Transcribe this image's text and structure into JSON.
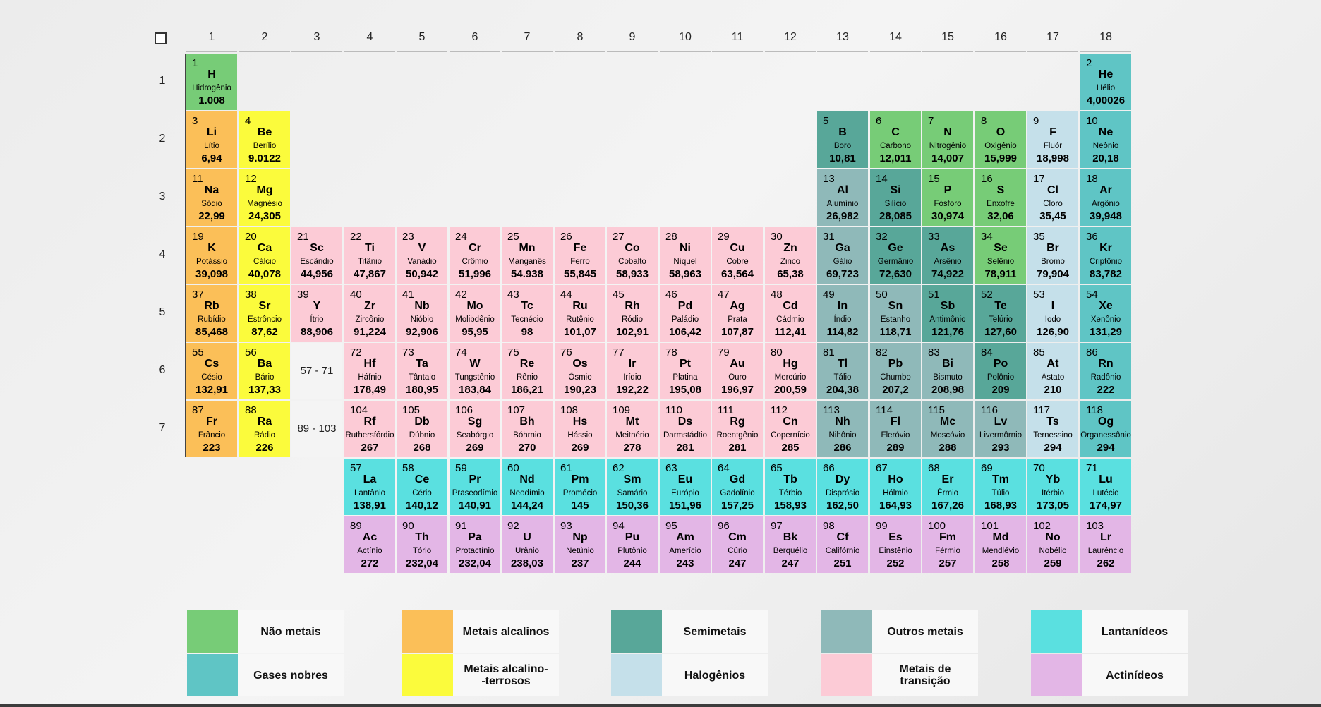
{
  "table": {
    "columns": [
      "1",
      "2",
      "3",
      "4",
      "5",
      "6",
      "7",
      "8",
      "9",
      "10",
      "11",
      "12",
      "13",
      "14",
      "15",
      "16",
      "17",
      "18"
    ],
    "rows": [
      "1",
      "2",
      "3",
      "4",
      "5",
      "6",
      "7"
    ],
    "ranges": [
      {
        "col": 3,
        "row": 6,
        "label": "57 - 71"
      },
      {
        "col": 3,
        "row": 7,
        "label": "89 - 103"
      }
    ]
  },
  "colors": {
    "nonmetal": "#77cc77",
    "noble": "#5fc5c5",
    "alkali": "#fbbf58",
    "alkaline": "#fbfb3c",
    "metalloid": "#58a799",
    "halogen": "#c5e0ea",
    "othermetal": "#8fb9b9",
    "transition": "#fccbd6",
    "lanthanide": "#5ae0e0",
    "actinide": "#e3b6e6"
  },
  "elements": [
    {
      "n": "1",
      "s": "H",
      "name": "Hidrogênio",
      "m": "1.008",
      "c": "nonmetal",
      "col": 1,
      "row": 1
    },
    {
      "n": "2",
      "s": "He",
      "name": "Hélio",
      "m": "4,00026",
      "c": "noble",
      "col": 18,
      "row": 1
    },
    {
      "n": "3",
      "s": "Li",
      "name": "Lítio",
      "m": "6,94",
      "c": "alkali",
      "col": 1,
      "row": 2
    },
    {
      "n": "4",
      "s": "Be",
      "name": "Berílio",
      "m": "9.0122",
      "c": "alkaline",
      "col": 2,
      "row": 2
    },
    {
      "n": "5",
      "s": "B",
      "name": "Boro",
      "m": "10,81",
      "c": "metalloid",
      "col": 13,
      "row": 2
    },
    {
      "n": "6",
      "s": "C",
      "name": "Carbono",
      "m": "12,011",
      "c": "nonmetal",
      "col": 14,
      "row": 2
    },
    {
      "n": "7",
      "s": "N",
      "name": "Nitrogênio",
      "m": "14,007",
      "c": "nonmetal",
      "col": 15,
      "row": 2
    },
    {
      "n": "8",
      "s": "O",
      "name": "Oxigênio",
      "m": "15,999",
      "c": "nonmetal",
      "col": 16,
      "row": 2
    },
    {
      "n": "9",
      "s": "F",
      "name": "Fluór",
      "m": "18,998",
      "c": "halogen",
      "col": 17,
      "row": 2
    },
    {
      "n": "10",
      "s": "Ne",
      "name": "Neônio",
      "m": "20,18",
      "c": "noble",
      "col": 18,
      "row": 2
    },
    {
      "n": "11",
      "s": "Na",
      "name": "Sódio",
      "m": "22,99",
      "c": "alkali",
      "col": 1,
      "row": 3
    },
    {
      "n": "12",
      "s": "Mg",
      "name": "Magnésio",
      "m": "24,305",
      "c": "alkaline",
      "col": 2,
      "row": 3
    },
    {
      "n": "13",
      "s": "Al",
      "name": "Alumínio",
      "m": "26,982",
      "c": "othermetal",
      "col": 13,
      "row": 3
    },
    {
      "n": "14",
      "s": "Si",
      "name": "Silício",
      "m": "28,085",
      "c": "metalloid",
      "col": 14,
      "row": 3
    },
    {
      "n": "15",
      "s": "P",
      "name": "Fósforo",
      "m": "30,974",
      "c": "nonmetal",
      "col": 15,
      "row": 3
    },
    {
      "n": "16",
      "s": "S",
      "name": "Enxofre",
      "m": "32,06",
      "c": "nonmetal",
      "col": 16,
      "row": 3
    },
    {
      "n": "17",
      "s": "Cl",
      "name": "Cloro",
      "m": "35,45",
      "c": "halogen",
      "col": 17,
      "row": 3
    },
    {
      "n": "18",
      "s": "Ar",
      "name": "Argônio",
      "m": "39,948",
      "c": "noble",
      "col": 18,
      "row": 3
    },
    {
      "n": "19",
      "s": "K",
      "name": "Potássio",
      "m": "39,098",
      "c": "alkali",
      "col": 1,
      "row": 4
    },
    {
      "n": "20",
      "s": "Ca",
      "name": "Cálcio",
      "m": "40,078",
      "c": "alkaline",
      "col": 2,
      "row": 4
    },
    {
      "n": "21",
      "s": "Sc",
      "name": "Escândio",
      "m": "44,956",
      "c": "transition",
      "col": 3,
      "row": 4
    },
    {
      "n": "22",
      "s": "Ti",
      "name": "Titânio",
      "m": "47,867",
      "c": "transition",
      "col": 4,
      "row": 4
    },
    {
      "n": "23",
      "s": "V",
      "name": "Vanádio",
      "m": "50,942",
      "c": "transition",
      "col": 5,
      "row": 4
    },
    {
      "n": "24",
      "s": "Cr",
      "name": "Crômio",
      "m": "51,996",
      "c": "transition",
      "col": 6,
      "row": 4
    },
    {
      "n": "25",
      "s": "Mn",
      "name": "Manganês",
      "m": "54.938",
      "c": "transition",
      "col": 7,
      "row": 4
    },
    {
      "n": "26",
      "s": "Fe",
      "name": "Ferro",
      "m": "55,845",
      "c": "transition",
      "col": 8,
      "row": 4
    },
    {
      "n": "27",
      "s": "Co",
      "name": "Cobalto",
      "m": "58,933",
      "c": "transition",
      "col": 9,
      "row": 4
    },
    {
      "n": "28",
      "s": "Ni",
      "name": "Níquel",
      "m": "58,963",
      "c": "transition",
      "col": 10,
      "row": 4
    },
    {
      "n": "29",
      "s": "Cu",
      "name": "Cobre",
      "m": "63,564",
      "c": "transition",
      "col": 11,
      "row": 4
    },
    {
      "n": "30",
      "s": "Zn",
      "name": "Zinco",
      "m": "65,38",
      "c": "transition",
      "col": 12,
      "row": 4
    },
    {
      "n": "31",
      "s": "Ga",
      "name": "Gálio",
      "m": "69,723",
      "c": "othermetal",
      "col": 13,
      "row": 4
    },
    {
      "n": "32",
      "s": "Ge",
      "name": "Germânio",
      "m": "72,630",
      "c": "metalloid",
      "col": 14,
      "row": 4
    },
    {
      "n": "33",
      "s": "As",
      "name": "Arsênio",
      "m": "74,922",
      "c": "metalloid",
      "col": 15,
      "row": 4
    },
    {
      "n": "34",
      "s": "Se",
      "name": "Selênio",
      "m": "78,911",
      "c": "nonmetal",
      "col": 16,
      "row": 4
    },
    {
      "n": "35",
      "s": "Br",
      "name": "Bromo",
      "m": "79,904",
      "c": "halogen",
      "col": 17,
      "row": 4
    },
    {
      "n": "36",
      "s": "Kr",
      "name": "Criptônio",
      "m": "83,782",
      "c": "noble",
      "col": 18,
      "row": 4
    },
    {
      "n": "37",
      "s": "Rb",
      "name": "Rubídio",
      "m": "85,468",
      "c": "alkali",
      "col": 1,
      "row": 5
    },
    {
      "n": "38",
      "s": "Sr",
      "name": "Estrôncio",
      "m": "87,62",
      "c": "alkaline",
      "col": 2,
      "row": 5
    },
    {
      "n": "39",
      "s": "Y",
      "name": "Ítrio",
      "m": "88,906",
      "c": "transition",
      "col": 3,
      "row": 5
    },
    {
      "n": "40",
      "s": "Zr",
      "name": "Zircônio",
      "m": "91,224",
      "c": "transition",
      "col": 4,
      "row": 5
    },
    {
      "n": "41",
      "s": "Nb",
      "name": "Nióbio",
      "m": "92,906",
      "c": "transition",
      "col": 5,
      "row": 5
    },
    {
      "n": "42",
      "s": "Mo",
      "name": "Molibdênio",
      "m": "95,95",
      "c": "transition",
      "col": 6,
      "row": 5
    },
    {
      "n": "43",
      "s": "Tc",
      "name": "Tecnécio",
      "m": "98",
      "c": "transition",
      "col": 7,
      "row": 5
    },
    {
      "n": "44",
      "s": "Ru",
      "name": "Rutênio",
      "m": "101,07",
      "c": "transition",
      "col": 8,
      "row": 5
    },
    {
      "n": "45",
      "s": "Rh",
      "name": "Ródio",
      "m": "102,91",
      "c": "transition",
      "col": 9,
      "row": 5
    },
    {
      "n": "46",
      "s": "Pd",
      "name": "Paládio",
      "m": "106,42",
      "c": "transition",
      "col": 10,
      "row": 5
    },
    {
      "n": "47",
      "s": "Ag",
      "name": "Prata",
      "m": "107,87",
      "c": "transition",
      "col": 11,
      "row": 5
    },
    {
      "n": "48",
      "s": "Cd",
      "name": "Cádmio",
      "m": "112,41",
      "c": "transition",
      "col": 12,
      "row": 5
    },
    {
      "n": "49",
      "s": "In",
      "name": "Índio",
      "m": "114,82",
      "c": "othermetal",
      "col": 13,
      "row": 5
    },
    {
      "n": "50",
      "s": "Sn",
      "name": "Estanho",
      "m": "118,71",
      "c": "othermetal",
      "col": 14,
      "row": 5
    },
    {
      "n": "51",
      "s": "Sb",
      "name": "Antimônio",
      "m": "121,76",
      "c": "metalloid",
      "col": 15,
      "row": 5
    },
    {
      "n": "52",
      "s": "Te",
      "name": "Telúrio",
      "m": "127,60",
      "c": "metalloid",
      "col": 16,
      "row": 5
    },
    {
      "n": "53",
      "s": "I",
      "name": "Iodo",
      "m": "126,90",
      "c": "halogen",
      "col": 17,
      "row": 5
    },
    {
      "n": "54",
      "s": "Xe",
      "name": "Xenônio",
      "m": "131,29",
      "c": "noble",
      "col": 18,
      "row": 5
    },
    {
      "n": "55",
      "s": "Cs",
      "name": "Césio",
      "m": "132,91",
      "c": "alkali",
      "col": 1,
      "row": 6
    },
    {
      "n": "56",
      "s": "Ba",
      "name": "Bário",
      "m": "137,33",
      "c": "alkaline",
      "col": 2,
      "row": 6
    },
    {
      "n": "72",
      "s": "Hf",
      "name": "Háfnio",
      "m": "178,49",
      "c": "transition",
      "col": 4,
      "row": 6
    },
    {
      "n": "73",
      "s": "Ta",
      "name": "Tântalo",
      "m": "180,95",
      "c": "transition",
      "col": 5,
      "row": 6
    },
    {
      "n": "74",
      "s": "W",
      "name": "Tungstênio",
      "m": "183,84",
      "c": "transition",
      "col": 6,
      "row": 6
    },
    {
      "n": "75",
      "s": "Re",
      "name": "Rênio",
      "m": "186,21",
      "c": "transition",
      "col": 7,
      "row": 6
    },
    {
      "n": "76",
      "s": "Os",
      "name": "Ósmio",
      "m": "190,23",
      "c": "transition",
      "col": 8,
      "row": 6
    },
    {
      "n": "77",
      "s": "Ir",
      "name": "Irídio",
      "m": "192,22",
      "c": "transition",
      "col": 9,
      "row": 6
    },
    {
      "n": "78",
      "s": "Pt",
      "name": "Platina",
      "m": "195,08",
      "c": "transition",
      "col": 10,
      "row": 6
    },
    {
      "n": "79",
      "s": "Au",
      "name": "Ouro",
      "m": "196,97",
      "c": "transition",
      "col": 11,
      "row": 6
    },
    {
      "n": "80",
      "s": "Hg",
      "name": "Mercúrio",
      "m": "200,59",
      "c": "transition",
      "col": 12,
      "row": 6
    },
    {
      "n": "81",
      "s": "Tl",
      "name": "Tálio",
      "m": "204,38",
      "c": "othermetal",
      "col": 13,
      "row": 6
    },
    {
      "n": "82",
      "s": "Pb",
      "name": "Chumbo",
      "m": "207,2",
      "c": "othermetal",
      "col": 14,
      "row": 6
    },
    {
      "n": "83",
      "s": "Bi",
      "name": "Bismuto",
      "m": "208,98",
      "c": "othermetal",
      "col": 15,
      "row": 6
    },
    {
      "n": "84",
      "s": "Po",
      "name": "Polônio",
      "m": "209",
      "c": "metalloid",
      "col": 16,
      "row": 6
    },
    {
      "n": "85",
      "s": "At",
      "name": "Astato",
      "m": "210",
      "c": "halogen",
      "col": 17,
      "row": 6
    },
    {
      "n": "86",
      "s": "Rn",
      "name": "Radônio",
      "m": "222",
      "c": "noble",
      "col": 18,
      "row": 6
    },
    {
      "n": "87",
      "s": "Fr",
      "name": "Frâncio",
      "m": "223",
      "c": "alkali",
      "col": 1,
      "row": 7
    },
    {
      "n": "88",
      "s": "Ra",
      "name": "Rádio",
      "m": "226",
      "c": "alkaline",
      "col": 2,
      "row": 7
    },
    {
      "n": "104",
      "s": "Rf",
      "name": "Ruthersfórdio",
      "m": "267",
      "c": "transition",
      "col": 4,
      "row": 7
    },
    {
      "n": "105",
      "s": "Db",
      "name": "Dúbnio",
      "m": "268",
      "c": "transition",
      "col": 5,
      "row": 7
    },
    {
      "n": "106",
      "s": "Sg",
      "name": "Seabórgio",
      "m": "269",
      "c": "transition",
      "col": 6,
      "row": 7
    },
    {
      "n": "107",
      "s": "Bh",
      "name": "Bóhrnio",
      "m": "270",
      "c": "transition",
      "col": 7,
      "row": 7
    },
    {
      "n": "108",
      "s": "Hs",
      "name": "Hássio",
      "m": "269",
      "c": "transition",
      "col": 8,
      "row": 7
    },
    {
      "n": "109",
      "s": "Mt",
      "name": "Meitnério",
      "m": "278",
      "c": "transition",
      "col": 9,
      "row": 7
    },
    {
      "n": "110",
      "s": "Ds",
      "name": "Darmstádtio",
      "m": "281",
      "c": "transition",
      "col": 10,
      "row": 7
    },
    {
      "n": "111",
      "s": "Rg",
      "name": "Roentgênio",
      "m": "281",
      "c": "transition",
      "col": 11,
      "row": 7
    },
    {
      "n": "112",
      "s": "Cn",
      "name": "Copernício",
      "m": "285",
      "c": "transition",
      "col": 12,
      "row": 7
    },
    {
      "n": "113",
      "s": "Nh",
      "name": "Nihônio",
      "m": "286",
      "c": "othermetal",
      "col": 13,
      "row": 7
    },
    {
      "n": "114",
      "s": "Fl",
      "name": "Fleróvio",
      "m": "289",
      "c": "othermetal",
      "col": 14,
      "row": 7
    },
    {
      "n": "115",
      "s": "Mc",
      "name": "Moscóvio",
      "m": "288",
      "c": "othermetal",
      "col": 15,
      "row": 7
    },
    {
      "n": "116",
      "s": "Lv",
      "name": "Livermôrnio",
      "m": "293",
      "c": "othermetal",
      "col": 16,
      "row": 7
    },
    {
      "n": "117",
      "s": "Ts",
      "name": "Ternessino",
      "m": "294",
      "c": "halogen",
      "col": 17,
      "row": 7
    },
    {
      "n": "118",
      "s": "Og",
      "name": "Organessônio",
      "m": "294",
      "c": "noble",
      "col": 18,
      "row": 7
    },
    {
      "n": "57",
      "s": "La",
      "name": "Lantânio",
      "m": "138,91",
      "c": "lanthanide",
      "col": 4,
      "row": 8
    },
    {
      "n": "58",
      "s": "Ce",
      "name": "Cério",
      "m": "140,12",
      "c": "lanthanide",
      "col": 5,
      "row": 8
    },
    {
      "n": "59",
      "s": "Pr",
      "name": "Praseodímio",
      "m": "140,91",
      "c": "lanthanide",
      "col": 6,
      "row": 8
    },
    {
      "n": "60",
      "s": "Nd",
      "name": "Neodímio",
      "m": "144,24",
      "c": "lanthanide",
      "col": 7,
      "row": 8
    },
    {
      "n": "61",
      "s": "Pm",
      "name": "Promécio",
      "m": "145",
      "c": "lanthanide",
      "col": 8,
      "row": 8
    },
    {
      "n": "62",
      "s": "Sm",
      "name": "Samário",
      "m": "150,36",
      "c": "lanthanide",
      "col": 9,
      "row": 8
    },
    {
      "n": "63",
      "s": "Eu",
      "name": "Európio",
      "m": "151,96",
      "c": "lanthanide",
      "col": 10,
      "row": 8
    },
    {
      "n": "64",
      "s": "Gd",
      "name": "Gadolínio",
      "m": "157,25",
      "c": "lanthanide",
      "col": 11,
      "row": 8
    },
    {
      "n": "65",
      "s": "Tb",
      "name": "Térbio",
      "m": "158,93",
      "c": "lanthanide",
      "col": 12,
      "row": 8
    },
    {
      "n": "66",
      "s": "Dy",
      "name": "Disprósio",
      "m": "162,50",
      "c": "lanthanide",
      "col": 13,
      "row": 8
    },
    {
      "n": "67",
      "s": "Ho",
      "name": "Hólmio",
      "m": "164,93",
      "c": "lanthanide",
      "col": 14,
      "row": 8
    },
    {
      "n": "68",
      "s": "Er",
      "name": "Érmio",
      "m": "167,26",
      "c": "lanthanide",
      "col": 15,
      "row": 8
    },
    {
      "n": "69",
      "s": "Tm",
      "name": "Túlio",
      "m": "168,93",
      "c": "lanthanide",
      "col": 16,
      "row": 8
    },
    {
      "n": "70",
      "s": "Yb",
      "name": "Itérbio",
      "m": "173,05",
      "c": "lanthanide",
      "col": 17,
      "row": 8
    },
    {
      "n": "71",
      "s": "Lu",
      "name": "Lutécio",
      "m": "174,97",
      "c": "lanthanide",
      "col": 18,
      "row": 8
    },
    {
      "n": "89",
      "s": "Ac",
      "name": "Actínio",
      "m": "272",
      "c": "actinide",
      "col": 4,
      "row": 9
    },
    {
      "n": "90",
      "s": "Th",
      "name": "Tório",
      "m": "232,04",
      "c": "actinide",
      "col": 5,
      "row": 9
    },
    {
      "n": "91",
      "s": "Pa",
      "name": "Protactínio",
      "m": "232,04",
      "c": "actinide",
      "col": 6,
      "row": 9
    },
    {
      "n": "92",
      "s": "U",
      "name": "Urânio",
      "m": "238,03",
      "c": "actinide",
      "col": 7,
      "row": 9
    },
    {
      "n": "93",
      "s": "Np",
      "name": "Netúnio",
      "m": "237",
      "c": "actinide",
      "col": 8,
      "row": 9
    },
    {
      "n": "94",
      "s": "Pu",
      "name": "Plutônio",
      "m": "244",
      "c": "actinide",
      "col": 9,
      "row": 9
    },
    {
      "n": "95",
      "s": "Am",
      "name": "Amerício",
      "m": "243",
      "c": "actinide",
      "col": 10,
      "row": 9
    },
    {
      "n": "96",
      "s": "Cm",
      "name": "Cúrio",
      "m": "247",
      "c": "actinide",
      "col": 11,
      "row": 9
    },
    {
      "n": "97",
      "s": "Bk",
      "name": "Berquélio",
      "m": "247",
      "c": "actinide",
      "col": 12,
      "row": 9
    },
    {
      "n": "98",
      "s": "Cf",
      "name": "Califórnio",
      "m": "251",
      "c": "actinide",
      "col": 13,
      "row": 9
    },
    {
      "n": "99",
      "s": "Es",
      "name": "Einstênio",
      "m": "252",
      "c": "actinide",
      "col": 14,
      "row": 9
    },
    {
      "n": "100",
      "s": "Fm",
      "name": "Férmio",
      "m": "257",
      "c": "actinide",
      "col": 15,
      "row": 9
    },
    {
      "n": "101",
      "s": "Md",
      "name": "Mendlévio",
      "m": "258",
      "c": "actinide",
      "col": 16,
      "row": 9
    },
    {
      "n": "102",
      "s": "No",
      "name": "Nobélio",
      "m": "259",
      "c": "actinide",
      "col": 17,
      "row": 9
    },
    {
      "n": "103",
      "s": "Lr",
      "name": "Laurêncio",
      "m": "262",
      "c": "actinide",
      "col": 18,
      "row": 9
    }
  ],
  "legend": [
    {
      "key": "nonmetal",
      "label": "Não metais"
    },
    {
      "key": "noble",
      "label": "Gases nobres"
    },
    {
      "key": "alkali",
      "label": "Metais alcalinos"
    },
    {
      "key": "alkaline",
      "label": "Metais alcalino-\n-terrosos"
    },
    {
      "key": "metalloid",
      "label": "Semimetais"
    },
    {
      "key": "halogen",
      "label": "Halogênios"
    },
    {
      "key": "othermetal",
      "label": "Outros metais"
    },
    {
      "key": "transition",
      "label": "Metais de\ntransição"
    },
    {
      "key": "lanthanide",
      "label": "Lantanídeos"
    },
    {
      "key": "actinide",
      "label": "Actinídeos"
    }
  ]
}
